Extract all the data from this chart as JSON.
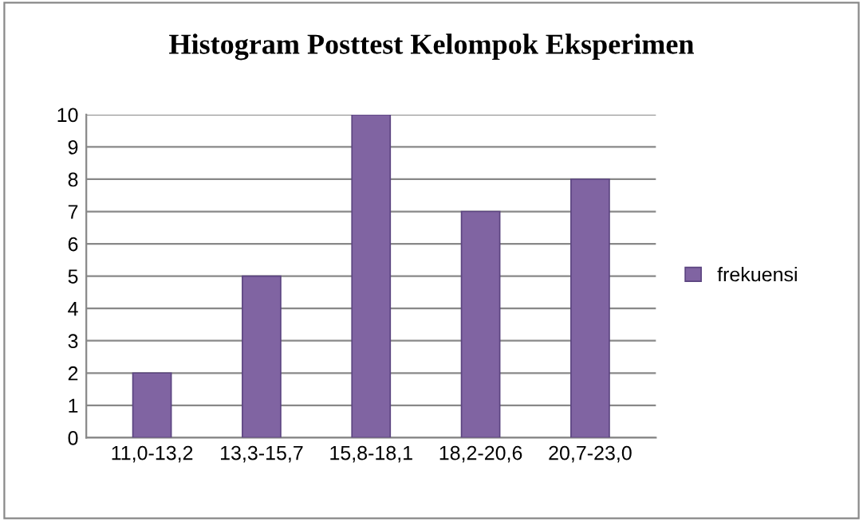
{
  "chart_data": {
    "type": "bar",
    "title": "Histogram Posttest Kelompok Eksperimen",
    "categories": [
      "11,0-13,2",
      "13,3-15,7",
      "15,8-18,1",
      "18,2-20,6",
      "20,7-23,0"
    ],
    "series": [
      {
        "name": "frekuensi",
        "color": "#8064a2",
        "values": [
          2,
          5,
          10,
          7,
          8
        ]
      }
    ],
    "ylim": [
      0,
      10
    ],
    "yticks": [
      0,
      1,
      2,
      3,
      4,
      5,
      6,
      7,
      8,
      9,
      10
    ],
    "grid": "y",
    "legend": "right"
  }
}
